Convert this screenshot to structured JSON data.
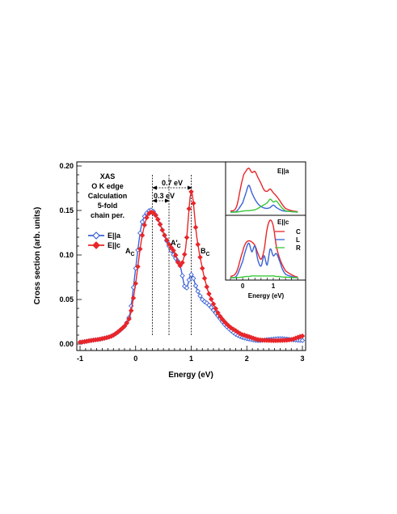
{
  "chart_data": [
    {
      "type": "line",
      "xlabel": "Energy (eV)",
      "ylabel": "Cross section (arb. units)",
      "xlim": [
        -1,
        3
      ],
      "ylim": [
        0,
        0.2
      ],
      "xticks": [
        "-1",
        "0",
        "1",
        "2",
        "3"
      ],
      "yticks": [
        "0.00",
        "0.05",
        "0.10",
        "0.15",
        "0.20"
      ],
      "grid": false,
      "legend_position": "left",
      "text_block": [
        "XAS",
        "O K edge",
        "Calculation",
        "5-fold",
        "chain per."
      ],
      "annotations": {
        "gap_large": "0.7 eV",
        "gap_small": "0.3 eV",
        "peak_a": "A",
        "peak_a_sub": "C",
        "peak_a2": "A'",
        "peak_a2_sub": "C",
        "peak_b": "B",
        "peak_b_sub": "C"
      },
      "vlines_x": [
        0.3,
        0.6,
        1.0
      ],
      "x": [
        -1.0,
        -0.8,
        -0.6,
        -0.4,
        -0.2,
        -0.1,
        0.0,
        0.1,
        0.2,
        0.3,
        0.4,
        0.5,
        0.6,
        0.7,
        0.8,
        0.9,
        1.0,
        1.1,
        1.2,
        1.3,
        1.4,
        1.5,
        1.6,
        1.7,
        1.8,
        1.9,
        2.0,
        2.2,
        2.4,
        2.6,
        2.8,
        3.0
      ],
      "series": [
        {
          "name": "E||a",
          "color": "#3b62d6",
          "marker": "open-diamond",
          "values": [
            0.002,
            0.004,
            0.006,
            0.01,
            0.02,
            0.035,
            0.085,
            0.132,
            0.147,
            0.15,
            0.14,
            0.125,
            0.11,
            0.098,
            0.088,
            0.062,
            0.078,
            0.062,
            0.05,
            0.045,
            0.038,
            0.03,
            0.022,
            0.016,
            0.011,
            0.008,
            0.006,
            0.004,
            0.005,
            0.006,
            0.005,
            0.004
          ]
        },
        {
          "name": "E||c",
          "color": "#e8262a",
          "marker": "filled-diamond",
          "values": [
            0.002,
            0.004,
            0.006,
            0.01,
            0.02,
            0.032,
            0.068,
            0.115,
            0.142,
            0.148,
            0.14,
            0.125,
            0.112,
            0.103,
            0.088,
            0.108,
            0.171,
            0.12,
            0.085,
            0.06,
            0.045,
            0.033,
            0.025,
            0.019,
            0.015,
            0.011,
            0.009,
            0.005,
            0.004,
            0.004,
            0.005,
            0.009
          ]
        }
      ]
    },
    {
      "type": "line",
      "panel": "inset-top",
      "label": "E||a",
      "x": [
        -0.4,
        -0.2,
        0.0,
        0.1,
        0.2,
        0.3,
        0.4,
        0.5,
        0.6,
        0.7,
        0.8,
        0.9,
        1.0,
        1.1,
        1.2,
        1.3,
        1.4,
        1.6,
        1.8
      ],
      "series": [
        {
          "color": "#e8262a",
          "values": [
            0.02,
            0.12,
            0.72,
            0.88,
            0.95,
            0.86,
            0.88,
            0.75,
            0.62,
            0.48,
            0.45,
            0.5,
            0.42,
            0.35,
            0.26,
            0.16,
            0.08,
            0.03,
            0.01
          ]
        },
        {
          "color": "#3b62d6",
          "values": [
            0.0,
            0.02,
            0.2,
            0.4,
            0.58,
            0.42,
            0.28,
            0.18,
            0.12,
            0.09,
            0.08,
            0.1,
            0.15,
            0.1,
            0.06,
            0.03,
            0.02,
            0.01,
            0.0
          ]
        },
        {
          "color": "#38c838",
          "values": [
            0.0,
            0.0,
            0.02,
            0.03,
            0.03,
            0.04,
            0.05,
            0.08,
            0.12,
            0.16,
            0.2,
            0.28,
            0.22,
            0.24,
            0.16,
            0.08,
            0.03,
            0.01,
            0.0
          ]
        }
      ]
    },
    {
      "type": "line",
      "panel": "inset-bottom",
      "label": "E||c",
      "xlabel": "Energy (eV)",
      "xticks": [
        "0",
        "1"
      ],
      "legend": [
        "C",
        "L",
        "R"
      ],
      "x": [
        -0.4,
        -0.2,
        0.0,
        0.1,
        0.2,
        0.3,
        0.4,
        0.5,
        0.6,
        0.7,
        0.8,
        0.9,
        1.0,
        1.1,
        1.2,
        1.3,
        1.4,
        1.6,
        1.8
      ],
      "series": [
        {
          "color": "#e8262a",
          "values": [
            0.02,
            0.1,
            0.45,
            0.6,
            0.64,
            0.62,
            0.56,
            0.42,
            0.32,
            0.48,
            0.85,
            1.0,
            0.9,
            0.55,
            0.35,
            0.22,
            0.12,
            0.05,
            0.01
          ]
        },
        {
          "color": "#3b62d6",
          "values": [
            0.0,
            0.03,
            0.28,
            0.48,
            0.6,
            0.45,
            0.55,
            0.3,
            0.2,
            0.38,
            0.22,
            0.5,
            0.38,
            0.42,
            0.3,
            0.15,
            0.06,
            0.02,
            0.0
          ]
        },
        {
          "color": "#38c838",
          "values": [
            0.0,
            0.0,
            0.01,
            0.02,
            0.02,
            0.03,
            0.03,
            0.03,
            0.03,
            0.03,
            0.03,
            0.03,
            0.03,
            0.02,
            0.02,
            0.01,
            0.01,
            0.0,
            0.0
          ]
        }
      ]
    }
  ]
}
